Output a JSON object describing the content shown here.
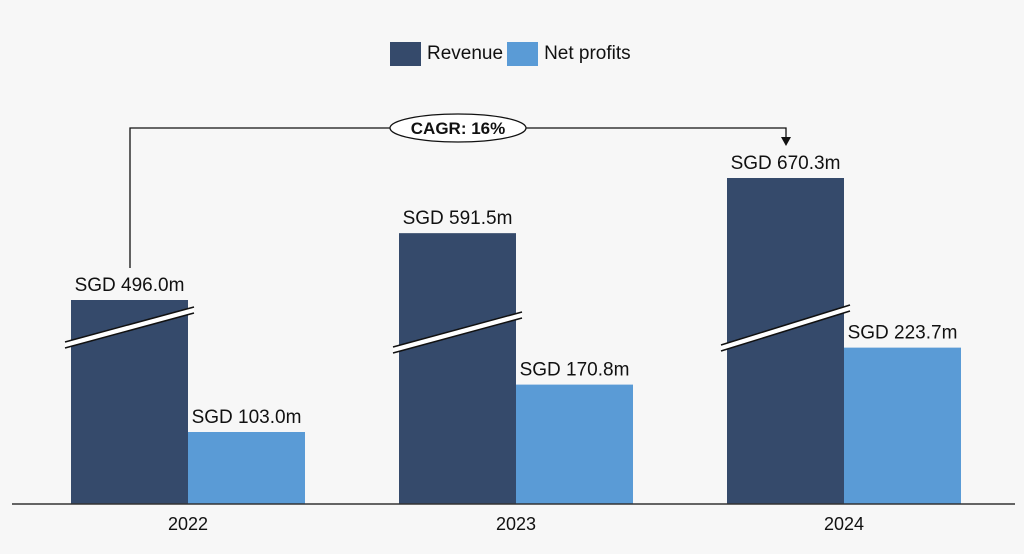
{
  "chart_data": {
    "type": "bar",
    "title": "",
    "xlabel": "",
    "ylabel": "",
    "categories": [
      "2022",
      "2023",
      "2024"
    ],
    "series": [
      {
        "name": "Revenue",
        "values": [
          496.0,
          591.5,
          670.3
        ],
        "color": "#354a6b",
        "labels": [
          "SGD 496.0m",
          "SGD 591.5m",
          "SGD 670.3m"
        ],
        "axis_break": true
      },
      {
        "name": "Net profits",
        "values": [
          103.0,
          170.8,
          223.7
        ],
        "color": "#5a9bd6",
        "labels": [
          "SGD 103.0m",
          "SGD 170.8m",
          "SGD 223.7m"
        ]
      }
    ],
    "legend": {
      "position": "top-center",
      "entries": [
        "Revenue",
        "Net profits"
      ]
    },
    "annotation": {
      "text": "CAGR: 16%",
      "from": "2022 Revenue",
      "to": "2024 Revenue"
    },
    "grid": false
  }
}
